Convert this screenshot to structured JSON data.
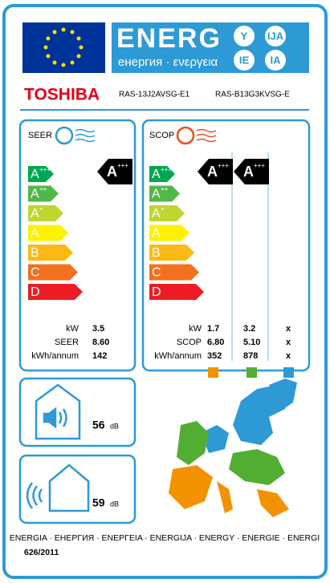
{
  "header": {
    "energy": "ENERG",
    "subtitle": "енергия · ενεργεια",
    "suffixes": [
      "Y",
      "IJA",
      "IE",
      "IA"
    ]
  },
  "supplier": {
    "brand": "TOSHIBA",
    "models": [
      "RAS-13J2AVSG-E1",
      "RAS-B13G3KVSG-E"
    ]
  },
  "classes": [
    {
      "letter": "A",
      "sup": "+++"
    },
    {
      "letter": "A",
      "sup": "++"
    },
    {
      "letter": "A",
      "sup": "+"
    },
    {
      "letter": "A"
    },
    {
      "letter": "B"
    },
    {
      "letter": "C"
    },
    {
      "letter": "D"
    }
  ],
  "cooling": {
    "label": "SEER",
    "rating": {
      "letter": "A",
      "sup": "+++"
    },
    "rows": [
      {
        "label": "kW",
        "values": [
          "3.5"
        ]
      },
      {
        "label": "SEER",
        "values": [
          "8.60"
        ]
      },
      {
        "label": "kWh/annum",
        "values": [
          "142"
        ]
      }
    ]
  },
  "heating": {
    "label": "SCOP",
    "ratings": [
      {
        "letter": "A",
        "sup": "+++"
      },
      {
        "letter": "A",
        "sup": "+++"
      }
    ],
    "rows": [
      {
        "label": "kW",
        "values": [
          "1.7",
          "3.2",
          "x"
        ]
      },
      {
        "label": "SCOP",
        "values": [
          "6.80",
          "5.10",
          "x"
        ]
      },
      {
        "label": "kWh/annum",
        "values": [
          "352",
          "878",
          "x"
        ]
      }
    ]
  },
  "noise": [
    {
      "value": "56",
      "unit": "dB"
    },
    {
      "value": "59",
      "unit": "dB"
    }
  ],
  "footer": {
    "languages": "ENERGIA · ЕНЕРГИЯ · ΕΝΕΡΓΕΙΑ · ENERGIJA · ENERGY · ENERGIE · ENERGI",
    "regulation": "626/2011"
  }
}
